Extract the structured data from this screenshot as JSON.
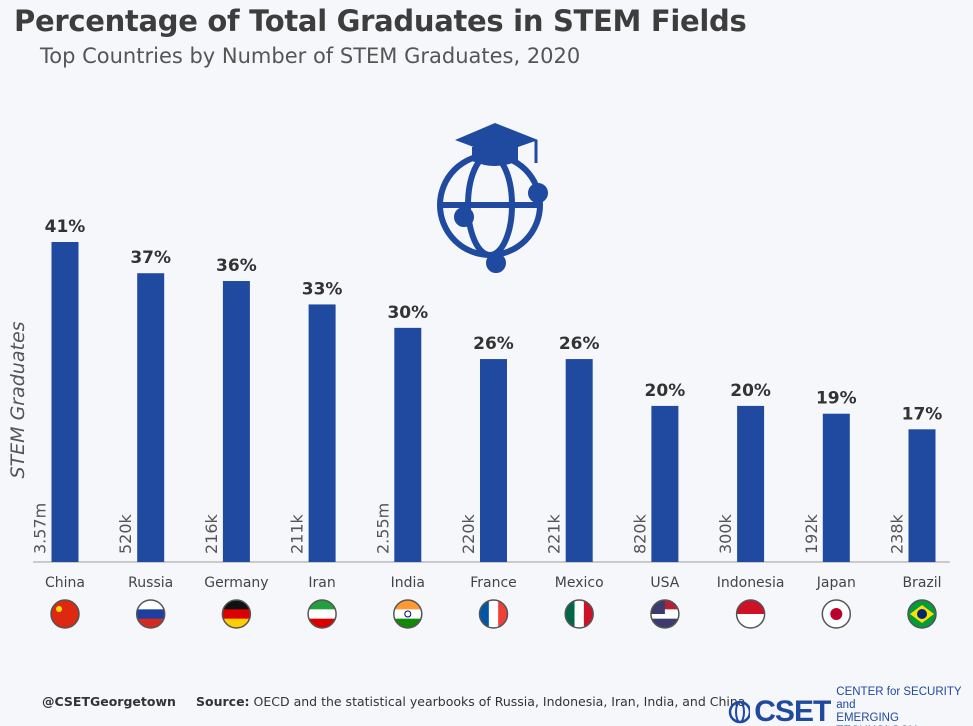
{
  "chart_data": {
    "type": "bar",
    "title": "Percentage of Total Graduates in STEM Fields",
    "subtitle": "Top Countries by Number of STEM Graduates, 2020",
    "ylabel": "STEM Graduates",
    "categories": [
      "China",
      "Russia",
      "Germany",
      "Iran",
      "India",
      "France",
      "Mexico",
      "USA",
      "Indonesia",
      "Japan",
      "Brazil"
    ],
    "values": [
      41,
      37,
      36,
      33,
      30,
      26,
      26,
      20,
      20,
      19,
      17
    ],
    "value_labels": [
      "41%",
      "37%",
      "36%",
      "33%",
      "30%",
      "26%",
      "26%",
      "20%",
      "20%",
      "19%",
      "17%"
    ],
    "graduate_counts": [
      "3.57m",
      "520k",
      "216k",
      "211k",
      "2.55m",
      "220k",
      "221k",
      "820k",
      "300k",
      "192k",
      "238k"
    ],
    "flags": [
      "china-flag",
      "russia-flag",
      "germany-flag",
      "iran-flag",
      "india-flag",
      "france-flag",
      "mexico-flag",
      "usa-flag",
      "indonesia-flag",
      "japan-flag",
      "brazil-flag"
    ],
    "ylim": [
      0,
      42
    ],
    "grid": false,
    "bar_color": "#1f4aa0"
  },
  "footer": {
    "handle": "@CSETGeorgetown",
    "source_label": "Source:",
    "source_text": " OECD and the statistical yearbooks of Russia, Indonesia, Iran, India, and China",
    "logo_mark": "CSET",
    "logo_line1": "CENTER for SECURITY and",
    "logo_line2": "EMERGING TECHNOLOGY"
  }
}
